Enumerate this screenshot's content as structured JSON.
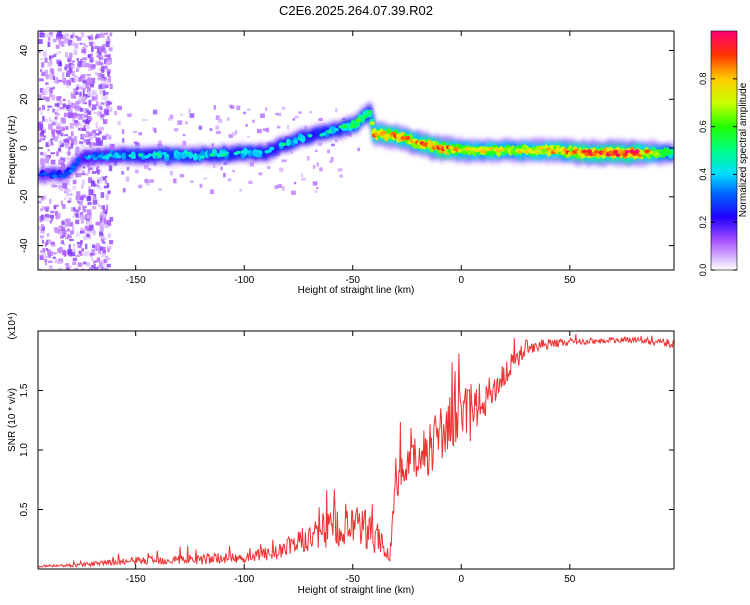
{
  "title": "C2E6.2025.264.07.39.R02",
  "chart_data": [
    {
      "type": "heatmap",
      "xlabel": "Height of straight line (km)",
      "ylabel": "Frequency (Hz)",
      "xlim": [
        -195,
        98
      ],
      "ylim": [
        -50,
        48
      ],
      "xticks": [
        -150,
        -100,
        -50,
        0,
        50
      ],
      "yticks": [
        -40,
        -20,
        0,
        20,
        40
      ],
      "colorbar": {
        "label": "Normalized spectral amplitude",
        "range": [
          0,
          1
        ],
        "ticks": [
          0.0,
          0.2,
          0.4,
          0.6,
          0.8
        ],
        "colors": [
          "#ffffff",
          "#cc99ff",
          "#7700ff",
          "#0000ff",
          "#00ccff",
          "#00ff99",
          "#00ff00",
          "#ccff00",
          "#ffcc00",
          "#ff3300",
          "#ff0066"
        ]
      },
      "ridge": [
        {
          "x": -192,
          "f": -11,
          "a": 0.3
        },
        {
          "x": -182,
          "f": -11,
          "a": 0.3
        },
        {
          "x": -175,
          "f": -4,
          "a": 0.35
        },
        {
          "x": -160,
          "f": -3,
          "a": 0.4
        },
        {
          "x": -140,
          "f": -3,
          "a": 0.45
        },
        {
          "x": -120,
          "f": -3,
          "a": 0.45
        },
        {
          "x": -100,
          "f": -2,
          "a": 0.45
        },
        {
          "x": -90,
          "f": -2,
          "a": 0.45
        },
        {
          "x": -80,
          "f": 2,
          "a": 0.45
        },
        {
          "x": -70,
          "f": 5,
          "a": 0.45
        },
        {
          "x": -60,
          "f": 7,
          "a": 0.45
        },
        {
          "x": -50,
          "f": 9,
          "a": 0.55
        },
        {
          "x": -45,
          "f": 13,
          "a": 0.55
        },
        {
          "x": -42,
          "f": 15,
          "a": 0.5
        },
        {
          "x": -40,
          "f": 6,
          "a": 0.8
        },
        {
          "x": -30,
          "f": 5,
          "a": 0.8
        },
        {
          "x": -20,
          "f": 2,
          "a": 0.8
        },
        {
          "x": -10,
          "f": 0,
          "a": 0.85
        },
        {
          "x": 0,
          "f": -1,
          "a": 0.75
        },
        {
          "x": 20,
          "f": -1,
          "a": 0.7
        },
        {
          "x": 40,
          "f": -1,
          "a": 0.75
        },
        {
          "x": 60,
          "f": -2,
          "a": 0.85
        },
        {
          "x": 80,
          "f": -2,
          "a": 0.9
        },
        {
          "x": 97,
          "f": -2,
          "a": 0.55
        }
      ]
    },
    {
      "type": "line",
      "xlabel": "Height of straight line (km)",
      "ylabel": "SNR (10 * v/v)",
      "scale_label": "(x10⁴)",
      "xlim": [
        -195,
        98
      ],
      "ylim": [
        0,
        2.0
      ],
      "xticks": [
        -150,
        -100,
        -50,
        0,
        50
      ],
      "yticks": [
        0.5,
        1.0,
        1.5
      ],
      "series_color": "#ee3333",
      "envelope": [
        {
          "x": -195,
          "y": 0.02,
          "n": 0.01
        },
        {
          "x": -175,
          "y": 0.03,
          "n": 0.02
        },
        {
          "x": -150,
          "y": 0.06,
          "n": 0.04
        },
        {
          "x": -120,
          "y": 0.07,
          "n": 0.06
        },
        {
          "x": -100,
          "y": 0.08,
          "n": 0.05
        },
        {
          "x": -85,
          "y": 0.12,
          "n": 0.08
        },
        {
          "x": -75,
          "y": 0.2,
          "n": 0.12
        },
        {
          "x": -65,
          "y": 0.25,
          "n": 0.18
        },
        {
          "x": -55,
          "y": 0.3,
          "n": 0.25
        },
        {
          "x": -45,
          "y": 0.28,
          "n": 0.22
        },
        {
          "x": -38,
          "y": 0.22,
          "n": 0.2
        },
        {
          "x": -33,
          "y": 0.08,
          "n": 0.04
        },
        {
          "x": -30,
          "y": 0.7,
          "n": 0.2
        },
        {
          "x": -25,
          "y": 0.8,
          "n": 0.2
        },
        {
          "x": -15,
          "y": 0.95,
          "n": 0.3
        },
        {
          "x": -5,
          "y": 1.15,
          "n": 0.3
        },
        {
          "x": 5,
          "y": 1.25,
          "n": 0.3
        },
        {
          "x": 10,
          "y": 1.35,
          "n": 0.2
        },
        {
          "x": 20,
          "y": 1.6,
          "n": 0.15
        },
        {
          "x": 30,
          "y": 1.85,
          "n": 0.08
        },
        {
          "x": 50,
          "y": 1.9,
          "n": 0.03
        },
        {
          "x": 80,
          "y": 1.92,
          "n": 0.03
        },
        {
          "x": 98,
          "y": 1.88,
          "n": 0.05
        }
      ]
    }
  ]
}
